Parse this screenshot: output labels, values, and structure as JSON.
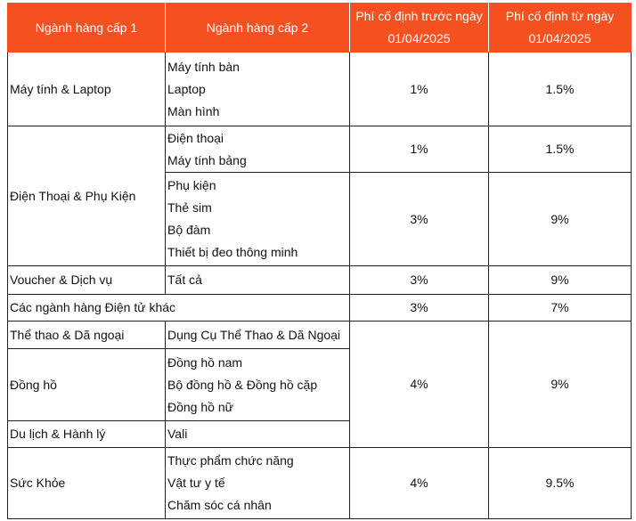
{
  "colors": {
    "header_bg": "#f5501f",
    "header_text": "#ffffff"
  },
  "headers": [
    "Ngành hàng cấp 1",
    "Ngành hàng cấp 2",
    "Phí cố định trước ngày 01/04/2025",
    "Phí cố định từ ngày 01/04/2025"
  ],
  "rows": [
    {
      "level1": "Máy tính & Laptop",
      "level2": [
        "Máy tính bàn",
        "Laptop",
        "Màn hình"
      ],
      "fee_before": "1%",
      "fee_after": "1.5%"
    },
    {
      "level1": "Điện Thoại & Phụ Kiện",
      "level2": [
        "Điện thoại",
        "Máy tính bảng"
      ],
      "fee_before": "1%",
      "fee_after": "1.5%"
    },
    {
      "level2": [
        "Phụ kiện",
        "Thẻ sim",
        "Bộ đàm",
        "Thiết bị đeo thông minh"
      ],
      "fee_before": "3%",
      "fee_after": "9%"
    },
    {
      "level1": "Voucher & Dịch vụ",
      "level2": [
        "Tất cả"
      ],
      "fee_before": "3%",
      "fee_after": "9%"
    },
    {
      "level1": "Các ngành hàng Điện tử khác",
      "fee_before": "3%",
      "fee_after": "7%"
    },
    {
      "level1": "Thể thao & Dã ngoại",
      "level2": [
        "Dụng Cụ Thể Thao & Dã Ngoại"
      ],
      "fee_before": "4%",
      "fee_after": "9%"
    },
    {
      "level1": "Đồng hồ",
      "level2": [
        "Đồng hồ nam",
        "Bộ đồng hồ & Đồng hồ cặp",
        "Đồng hồ nữ"
      ]
    },
    {
      "level1": "Du lịch & Hành lý",
      "level2": [
        "Vali"
      ]
    },
    {
      "level1": "Sức Khỏe",
      "level2": [
        "Thực phẩm chức năng",
        "Vật tư y tế",
        "Chăm sóc cá nhân"
      ],
      "fee_before": "4%",
      "fee_after": "9.5%"
    }
  ]
}
